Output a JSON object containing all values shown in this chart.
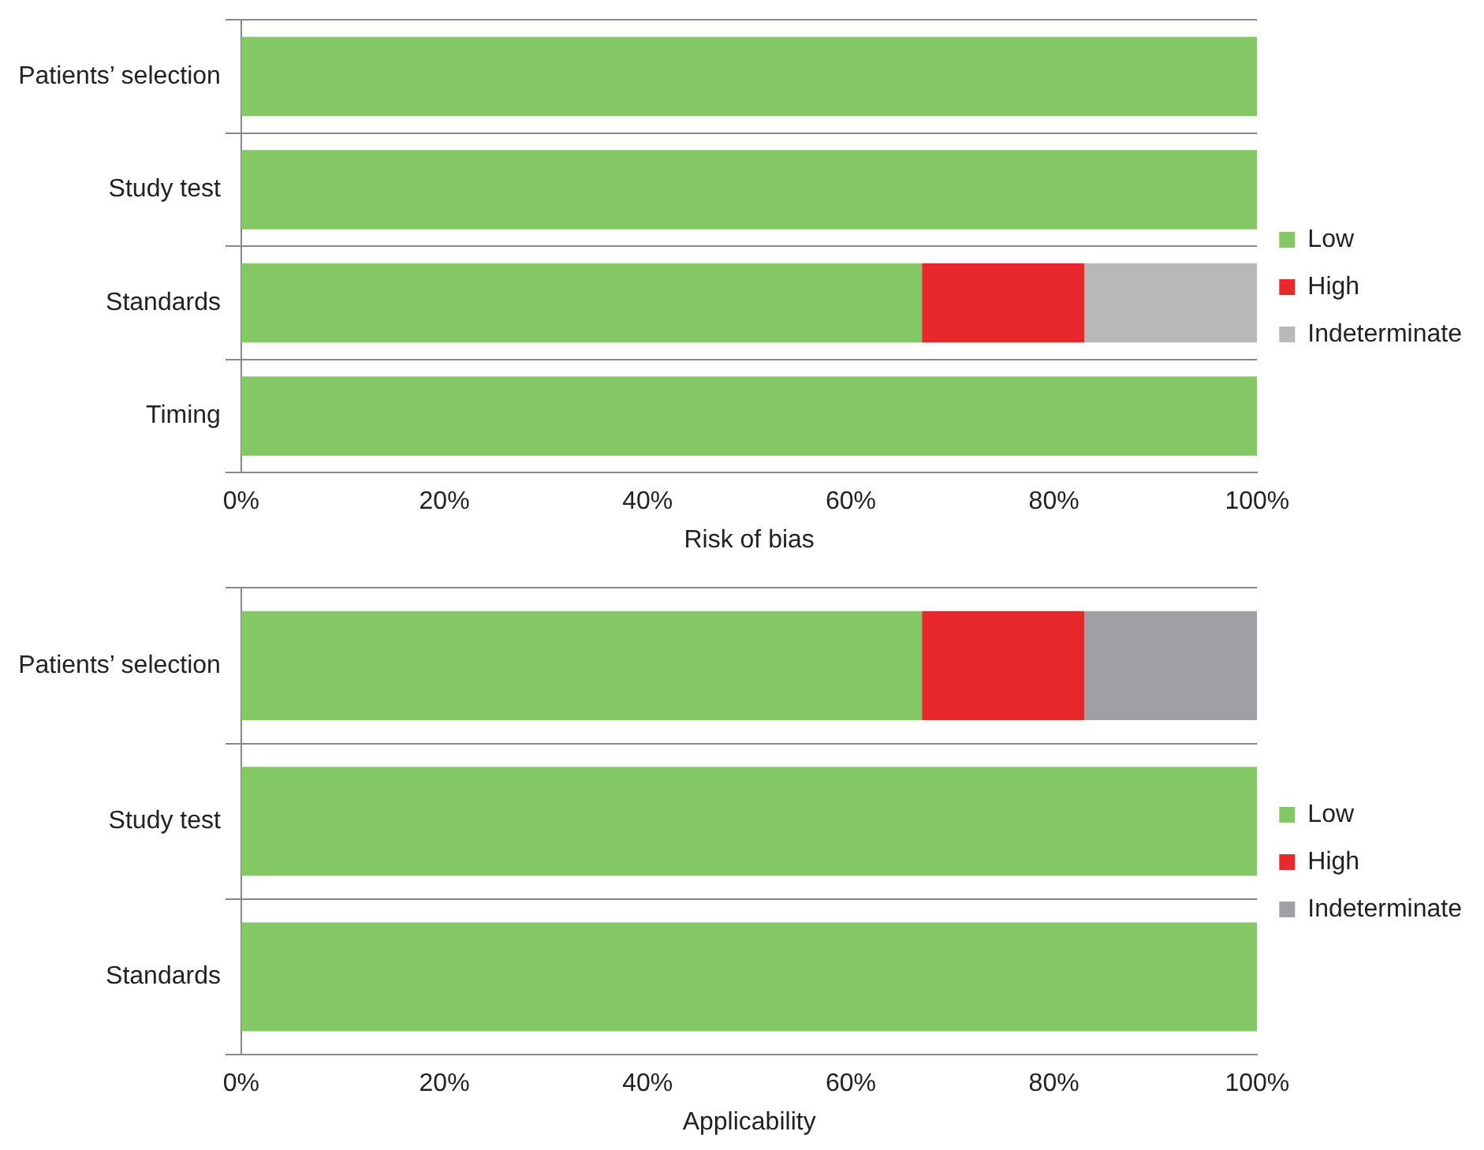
{
  "chart_data": [
    {
      "type": "bar",
      "orientation": "horizontal",
      "stacked": true,
      "xlabel": "Risk of bias",
      "categories": [
        "Patients’ selection",
        "Study test",
        "Standards",
        "Timing"
      ],
      "series": [
        {
          "name": "Low",
          "color": "#84c765",
          "values": [
            100,
            100,
            67,
            100
          ]
        },
        {
          "name": "High",
          "color": "#e8282b",
          "values": [
            0,
            0,
            16,
            0
          ]
        },
        {
          "name": "Indeterminate",
          "color": "#b8b8b9",
          "values": [
            0,
            0,
            17,
            0
          ]
        }
      ],
      "xlim": [
        0,
        100
      ],
      "xticks": [
        {
          "value": 0,
          "label": "0%"
        },
        {
          "value": 20,
          "label": "20%"
        },
        {
          "value": 40,
          "label": "40%"
        },
        {
          "value": 60,
          "label": "60%"
        },
        {
          "value": 80,
          "label": "80%"
        },
        {
          "value": 100,
          "label": "100%"
        }
      ],
      "grid": "y",
      "legend": "right"
    },
    {
      "type": "bar",
      "orientation": "horizontal",
      "stacked": true,
      "xlabel": "Applicability",
      "categories": [
        "Patients’ selection",
        "Study test",
        "Standards"
      ],
      "series": [
        {
          "name": "Low",
          "color": "#84c765",
          "values": [
            67,
            100,
            100
          ]
        },
        {
          "name": "High",
          "color": "#e8282b",
          "values": [
            16,
            0,
            0
          ]
        },
        {
          "name": "Indeterminate",
          "color": "#a0a0a4",
          "values": [
            17,
            0,
            0
          ]
        }
      ],
      "xlim": [
        0,
        100
      ],
      "xticks": [
        {
          "value": 0,
          "label": "0%"
        },
        {
          "value": 20,
          "label": "20%"
        },
        {
          "value": 40,
          "label": "40%"
        },
        {
          "value": 60,
          "label": "60%"
        },
        {
          "value": 80,
          "label": "80%"
        },
        {
          "value": 100,
          "label": "100%"
        }
      ],
      "grid": "y",
      "legend": "right"
    }
  ]
}
